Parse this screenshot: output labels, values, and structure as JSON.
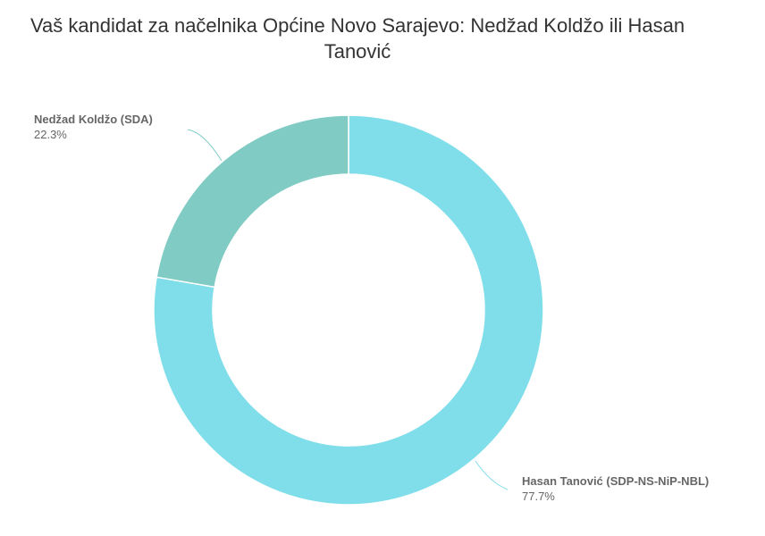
{
  "chart_data": {
    "type": "pie",
    "donut": true,
    "title": "Vaš kandidat za načelnika Općine Novo Sarajevo: Nedžad Koldžo ili Hasan Tanović",
    "slices": [
      {
        "label": "Hasan Tanović (SDP-NS-NiP-NBL)",
        "value": 77.7,
        "value_label": "77.7%",
        "color": "#80deea"
      },
      {
        "label": "Nedžad Koldžo (SDA)",
        "value": 22.3,
        "value_label": "22.3%",
        "color": "#80cbc4"
      }
    ]
  }
}
